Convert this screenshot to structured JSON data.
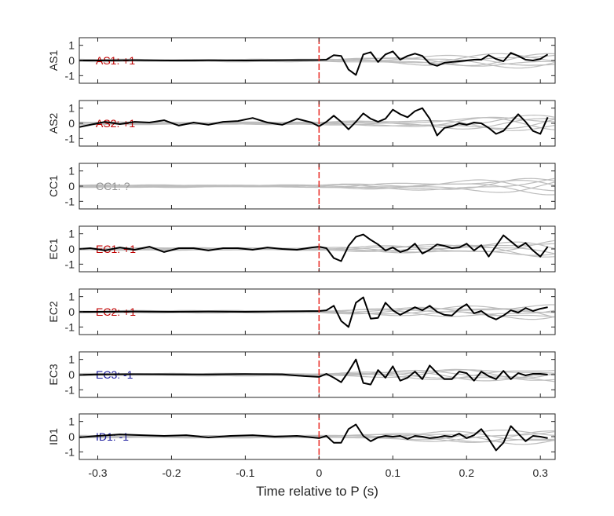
{
  "chart_data": {
    "type": "line",
    "xlabel": "Time relative to P (s)",
    "xlim": [
      -0.325,
      0.32
    ],
    "xticks": [
      -0.3,
      -0.2,
      -0.1,
      0,
      0.1,
      0.2,
      0.3
    ],
    "xtick_labels": [
      "-0.3",
      "-0.2",
      "-0.1",
      "0",
      "0.1",
      "0.2",
      "0.3"
    ],
    "ylim": [
      -1.5,
      1.5
    ],
    "yticks": [
      1,
      0,
      -1
    ],
    "ytick_labels": [
      "1",
      "0",
      "-1"
    ],
    "p_arrival_time": 0,
    "marker_color": "#e8261f",
    "trace_color": "#000000",
    "background_trace_color": "#bdbdbd",
    "panels": [
      {
        "station": "AS1",
        "polarity_label": "AS1: +1",
        "label_color": "#c00000",
        "show_trace": true,
        "series": [
          {
            "x": [
              -0.325,
              -0.3,
              -0.25,
              -0.2,
              -0.15,
              -0.1,
              -0.05,
              0,
              0.01,
              0.02,
              0.03,
              0.04,
              0.05,
              0.06,
              0.07,
              0.08,
              0.09,
              0.1,
              0.11,
              0.12,
              0.13,
              0.14,
              0.15,
              0.16,
              0.17,
              0.18,
              0.19,
              0.2,
              0.21,
              0.22,
              0.23,
              0.24,
              0.25,
              0.26,
              0.27,
              0.28,
              0.29,
              0.3,
              0.31
            ],
            "y": [
              0,
              0,
              0.02,
              0,
              0.01,
              0,
              0.02,
              0.03,
              0.05,
              0.35,
              0.3,
              -0.6,
              -0.95,
              0.4,
              0.55,
              -0.1,
              0.4,
              0.6,
              0.05,
              0.3,
              0.45,
              0.3,
              -0.2,
              -0.35,
              -0.15,
              -0.1,
              -0.05,
              0,
              0.05,
              0.05,
              0.35,
              0.1,
              -0.05,
              0.5,
              0.3,
              0.05,
              0,
              0.1,
              0.4
            ]
          }
        ]
      },
      {
        "station": "AS2",
        "polarity_label": "AS2: +1",
        "label_color": "#c00000",
        "show_trace": true,
        "series": [
          {
            "x": [
              -0.325,
              -0.31,
              -0.29,
              -0.27,
              -0.25,
              -0.23,
              -0.21,
              -0.19,
              -0.17,
              -0.15,
              -0.13,
              -0.11,
              -0.09,
              -0.07,
              -0.05,
              -0.03,
              -0.01,
              0,
              0.01,
              0.02,
              0.03,
              0.04,
              0.05,
              0.06,
              0.07,
              0.08,
              0.09,
              0.1,
              0.11,
              0.12,
              0.13,
              0.14,
              0.15,
              0.16,
              0.17,
              0.18,
              0.19,
              0.2,
              0.21,
              0.22,
              0.23,
              0.24,
              0.25,
              0.26,
              0.27,
              0.28,
              0.29,
              0.3,
              0.31
            ],
            "y": [
              -0.25,
              -0.1,
              0.1,
              -0.05,
              0.1,
              0.05,
              0.2,
              -0.15,
              0.05,
              -0.1,
              0.1,
              0.15,
              0.35,
              0.05,
              -0.1,
              0.3,
              0.05,
              -0.2,
              0.1,
              0.5,
              0.1,
              -0.4,
              0.1,
              0.65,
              0.3,
              0.1,
              0.3,
              0.9,
              0.6,
              0.4,
              0.8,
              1.0,
              0.3,
              -0.8,
              -0.3,
              -0.2,
              0,
              -0.1,
              0.05,
              0,
              -0.3,
              -0.7,
              -0.5,
              0.05,
              0.6,
              0.1,
              -0.5,
              -0.7,
              0.4
            ]
          }
        ]
      },
      {
        "station": "CC1",
        "polarity_label": "CC1: ?",
        "label_color": "#909090",
        "show_trace": false,
        "series": []
      },
      {
        "station": "EC1",
        "polarity_label": "EC1: +1",
        "label_color": "#c00000",
        "show_trace": true,
        "series": [
          {
            "x": [
              -0.325,
              -0.31,
              -0.29,
              -0.27,
              -0.25,
              -0.23,
              -0.21,
              -0.19,
              -0.17,
              -0.15,
              -0.13,
              -0.11,
              -0.09,
              -0.07,
              -0.05,
              -0.03,
              -0.01,
              0,
              0.01,
              0.02,
              0.03,
              0.04,
              0.05,
              0.06,
              0.07,
              0.08,
              0.09,
              0.1,
              0.11,
              0.12,
              0.13,
              0.14,
              0.15,
              0.16,
              0.17,
              0.18,
              0.19,
              0.2,
              0.21,
              0.22,
              0.23,
              0.24,
              0.25,
              0.26,
              0.27,
              0.28,
              0.29,
              0.3,
              0.31
            ],
            "y": [
              0,
              0.05,
              -0.1,
              0.1,
              -0.05,
              0.15,
              -0.2,
              0.05,
              0.05,
              -0.1,
              0.05,
              0.05,
              -0.05,
              0.1,
              0,
              -0.05,
              0.1,
              0.15,
              0.05,
              -0.6,
              -0.8,
              0.2,
              0.8,
              0.95,
              0.6,
              0.3,
              -0.1,
              0.1,
              -0.2,
              -0.05,
              0.35,
              -0.3,
              -0.05,
              0.3,
              0.2,
              0.05,
              0.1,
              0.35,
              -0.1,
              0.25,
              -0.5,
              0.2,
              0.9,
              0.5,
              0.1,
              0.4,
              -0.1,
              -0.5,
              0.15
            ]
          }
        ]
      },
      {
        "station": "EC2",
        "polarity_label": "EC2: +1",
        "label_color": "#c00000",
        "show_trace": true,
        "series": [
          {
            "x": [
              -0.325,
              -0.3,
              -0.25,
              -0.2,
              -0.15,
              -0.1,
              -0.05,
              0,
              0.01,
              0.02,
              0.03,
              0.04,
              0.05,
              0.06,
              0.07,
              0.08,
              0.09,
              0.1,
              0.11,
              0.12,
              0.13,
              0.14,
              0.15,
              0.16,
              0.17,
              0.18,
              0.19,
              0.2,
              0.21,
              0.22,
              0.23,
              0.24,
              0.25,
              0.26,
              0.27,
              0.28,
              0.29,
              0.3,
              0.31
            ],
            "y": [
              0,
              0,
              0.02,
              0,
              0.02,
              0,
              0.03,
              0.05,
              0.1,
              0.4,
              -0.6,
              -1.0,
              0.6,
              0.95,
              -0.45,
              -0.4,
              0.6,
              0.1,
              -0.2,
              0.05,
              0.3,
              0.1,
              0.4,
              0,
              -0.2,
              -0.25,
              0.2,
              0.5,
              -0.1,
              0.05,
              -0.3,
              -0.5,
              -0.25,
              0.1,
              -0.05,
              0.25,
              0.05,
              0.2,
              0.3
            ]
          }
        ]
      },
      {
        "station": "EC3",
        "polarity_label": "EC3: -1",
        "label_color": "#1a1a9e",
        "show_trace": true,
        "series": [
          {
            "x": [
              -0.325,
              -0.3,
              -0.25,
              -0.2,
              -0.15,
              -0.1,
              -0.05,
              -0.02,
              0,
              0.01,
              0.02,
              0.03,
              0.04,
              0.05,
              0.06,
              0.07,
              0.08,
              0.09,
              0.1,
              0.11,
              0.12,
              0.13,
              0.14,
              0.15,
              0.16,
              0.17,
              0.18,
              0.19,
              0.2,
              0.21,
              0.22,
              0.23,
              0.24,
              0.25,
              0.26,
              0.27,
              0.28,
              0.29,
              0.3,
              0.31
            ],
            "y": [
              -0.02,
              0.01,
              0.03,
              0.02,
              0.01,
              0.04,
              0.02,
              -0.1,
              -0.15,
              0.05,
              -0.2,
              -0.5,
              0.2,
              1.0,
              -0.55,
              -0.65,
              0.3,
              -0.2,
              0.55,
              -0.4,
              -0.2,
              0.2,
              -0.3,
              0.6,
              0.1,
              -0.3,
              -0.3,
              0.2,
              0.1,
              -0.4,
              0.2,
              -0.1,
              -0.3,
              0.25,
              -0.3,
              0.1,
              -0.05,
              0.05,
              0.05,
              0
            ]
          }
        ]
      },
      {
        "station": "ID1",
        "polarity_label": "ID1: -1",
        "label_color": "#1a1a9e",
        "show_trace": true,
        "series": [
          {
            "x": [
              -0.325,
              -0.3,
              -0.27,
              -0.24,
              -0.21,
              -0.18,
              -0.15,
              -0.12,
              -0.09,
              -0.06,
              -0.03,
              0,
              0.01,
              0.02,
              0.03,
              0.04,
              0.05,
              0.06,
              0.07,
              0.08,
              0.09,
              0.1,
              0.11,
              0.12,
              0.13,
              0.14,
              0.15,
              0.16,
              0.17,
              0.18,
              0.19,
              0.2,
              0.21,
              0.22,
              0.23,
              0.24,
              0.25,
              0.26,
              0.27,
              0.28,
              0.29,
              0.3,
              0.31
            ],
            "y": [
              -0.05,
              0.05,
              0.15,
              0.1,
              0.05,
              0.1,
              -0.05,
              0.05,
              0.1,
              0,
              0.05,
              -0.1,
              0.05,
              -0.4,
              -0.4,
              0.5,
              0.8,
              0.05,
              -0.3,
              -0.05,
              0.05,
              0,
              0.05,
              -0.15,
              0.05,
              0,
              -0.1,
              -0.05,
              0.05,
              0,
              0.2,
              -0.1,
              0.1,
              0.5,
              -0.15,
              -0.9,
              -0.4,
              0.7,
              0.2,
              -0.3,
              0.05,
              0,
              -0.1
            ]
          }
        ]
      }
    ]
  }
}
